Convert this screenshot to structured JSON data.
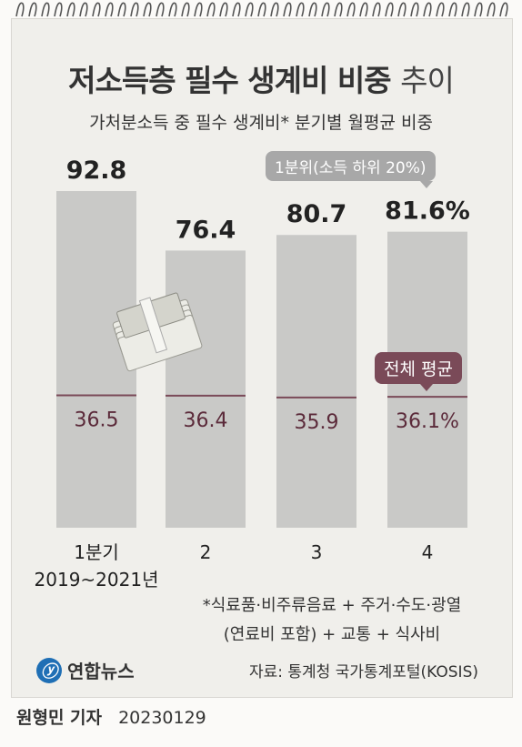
{
  "title_bold": "저소득층 필수 생계비 비중",
  "title_light": "추이",
  "subtitle": "가처분소득 중 필수 생계비* 분기별 월평균 비중",
  "annotations": {
    "q1_tag": "1분위(소득 하위 20%)",
    "avg_tag": "전체 평균"
  },
  "footnote": {
    "line1": "*식료품·비주류음료 + 주거·수도·광열",
    "line2": "(연료비 포함) + 교통 + 식사비"
  },
  "logo": {
    "mark": "ⓨ",
    "text": "연합뉴스"
  },
  "source": "자료: 통계청 국가통계포털(KOSIS)",
  "byline": {
    "name": "원형민 기자",
    "date": "20230129"
  },
  "colors": {
    "bar": "#c9c9c7",
    "avg_line": "#7a4a58",
    "avg_label": "#5b2a3a",
    "value_label": "#222222"
  },
  "icons": [
    "spiral-binding-icon",
    "money-stack-icon"
  ],
  "chart_data": {
    "type": "bar",
    "categories": [
      "1분기\n2019~2021년",
      "2",
      "3",
      "4"
    ],
    "series": [
      {
        "name": "1분위(소득 하위 20%)",
        "values": [
          92.8,
          76.4,
          80.7,
          81.6
        ],
        "labels": [
          "92.8",
          "76.4",
          "80.7",
          "81.6%"
        ]
      },
      {
        "name": "전체 평균",
        "values": [
          36.5,
          36.4,
          35.9,
          36.1
        ],
        "labels": [
          "36.5",
          "36.4",
          "35.9",
          "36.1%"
        ]
      }
    ],
    "ylim": [
      0,
      100
    ],
    "grid": false,
    "unit": "%"
  }
}
